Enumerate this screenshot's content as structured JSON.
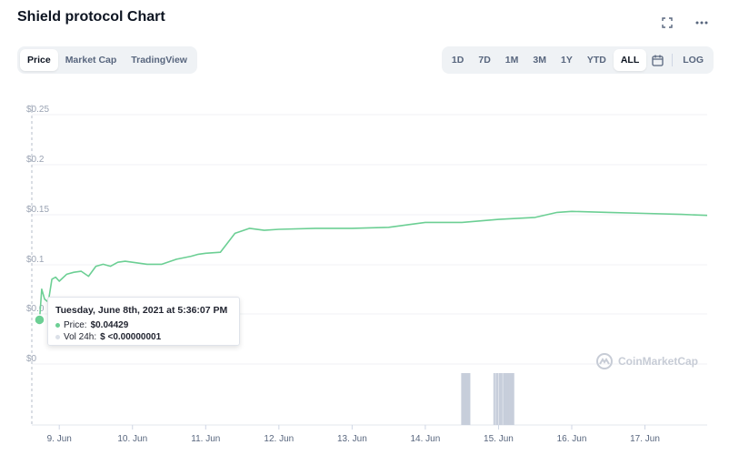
{
  "title": "Shield protocol Chart",
  "tabs": [
    {
      "label": "Price",
      "active": true
    },
    {
      "label": "Market Cap",
      "active": false
    },
    {
      "label": "TradingView",
      "active": false
    }
  ],
  "ranges": [
    {
      "label": "1D",
      "active": false
    },
    {
      "label": "7D",
      "active": false
    },
    {
      "label": "1M",
      "active": false
    },
    {
      "label": "3M",
      "active": false
    },
    {
      "label": "1Y",
      "active": false
    },
    {
      "label": "YTD",
      "active": false
    },
    {
      "label": "ALL",
      "active": true
    }
  ],
  "log_label": "LOG",
  "tooltip": {
    "date": "Tuesday, June 8th, 2021 at 5:36:07 PM",
    "price_label": "Price:",
    "price_value": "$0.04429",
    "vol_label": "Vol 24h:",
    "vol_value": "$ <0.00000001"
  },
  "watermark": "CoinMarketCap",
  "colors": {
    "line": "#6ccf94",
    "volume": "#c7cedb",
    "accent_dot": "#16c784"
  },
  "chart_data": {
    "type": "line",
    "y_ticks": [
      "$0.25",
      "$0.2",
      "$0.15",
      "$0.1",
      "$0.0",
      "$0"
    ],
    "x_ticks": [
      "9. Jun",
      "10. Jun",
      "11. Jun",
      "12. Jun",
      "13. Jun",
      "14. Jun",
      "15. Jun",
      "16. Jun",
      "17. Jun"
    ],
    "ylim": [
      0,
      0.25
    ],
    "series": [
      {
        "x": [
          8.73,
          8.76,
          8.8,
          8.85,
          8.9,
          8.95,
          9.0,
          9.1,
          9.2,
          9.3,
          9.4,
          9.5,
          9.6,
          9.7,
          9.8,
          9.9,
          10.0,
          10.2,
          10.4,
          10.6,
          10.8,
          10.9,
          11.0,
          11.2,
          11.4,
          11.6,
          11.8,
          12.0,
          12.5,
          13.0,
          13.5,
          13.8,
          14.0,
          14.5,
          15.0,
          15.5,
          15.8,
          16.0,
          16.5,
          17.0,
          17.5,
          17.85
        ],
        "y": [
          0.0443,
          0.075,
          0.065,
          0.062,
          0.085,
          0.087,
          0.083,
          0.09,
          0.092,
          0.093,
          0.088,
          0.098,
          0.1,
          0.098,
          0.102,
          0.103,
          0.102,
          0.1,
          0.1,
          0.105,
          0.108,
          0.11,
          0.111,
          0.112,
          0.131,
          0.136,
          0.134,
          0.135,
          0.136,
          0.136,
          0.137,
          0.14,
          0.142,
          0.142,
          0.145,
          0.147,
          0.152,
          0.153,
          0.152,
          0.151,
          0.15,
          0.149
        ]
      }
    ],
    "volume_x": [
      14.49,
      14.5,
      14.51,
      14.52,
      14.53,
      14.54,
      14.55,
      14.56,
      14.57,
      14.58,
      14.59,
      14.6,
      14.93,
      14.94,
      14.96,
      14.97,
      14.98,
      15.0,
      15.01,
      15.02,
      15.03,
      15.04,
      15.06,
      15.07,
      15.08,
      15.09,
      15.1,
      15.11,
      15.12,
      15.13,
      15.14,
      15.15,
      15.16,
      15.17,
      15.18,
      15.19,
      15.2
    ]
  }
}
